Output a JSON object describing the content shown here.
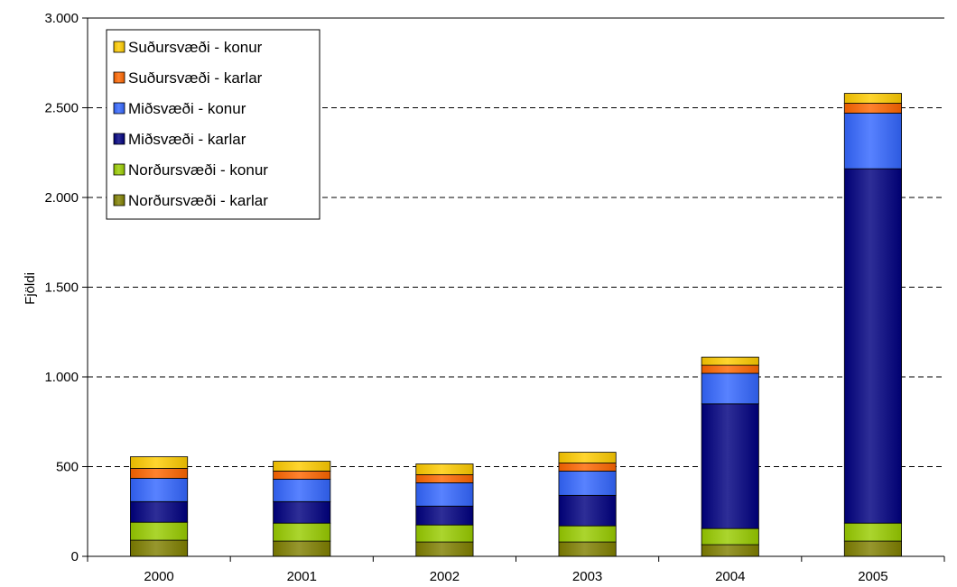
{
  "chart_data": {
    "type": "bar",
    "stacked": true,
    "categories": [
      "2000",
      "2001",
      "2002",
      "2003",
      "2004",
      "2005"
    ],
    "ylabel": "Fjöldi",
    "xlabel": "",
    "ylim": [
      0,
      3000
    ],
    "y_ticks": [
      0,
      500,
      1000,
      1500,
      2000,
      2500,
      3000
    ],
    "y_tick_labels": [
      "0",
      "500",
      "1.000",
      "1.500",
      "2.000",
      "2.500",
      "3.000"
    ],
    "grid": "horizontal dashed",
    "legend_position": "top-left",
    "series": [
      {
        "name": "Norðursvæði - karlar",
        "color": "#808000",
        "values": [
          90,
          85,
          80,
          80,
          65,
          85
        ]
      },
      {
        "name": "Norðursvæði - konur",
        "color": "#99cc00",
        "values": [
          100,
          100,
          95,
          90,
          90,
          100
        ]
      },
      {
        "name": "Miðsvæði - karlar",
        "color": "#000080",
        "values": [
          115,
          120,
          105,
          170,
          695,
          1975
        ]
      },
      {
        "name": "Miðsvæði - konur",
        "color": "#3366ff",
        "values": [
          130,
          125,
          130,
          135,
          170,
          310
        ]
      },
      {
        "name": "Suðursvæði - karlar",
        "color": "#ff6600",
        "values": [
          55,
          45,
          45,
          45,
          45,
          55
        ]
      },
      {
        "name": "Suðursvæði - konur",
        "color": "#ffcc00",
        "values": [
          65,
          55,
          60,
          60,
          45,
          55
        ]
      }
    ]
  }
}
